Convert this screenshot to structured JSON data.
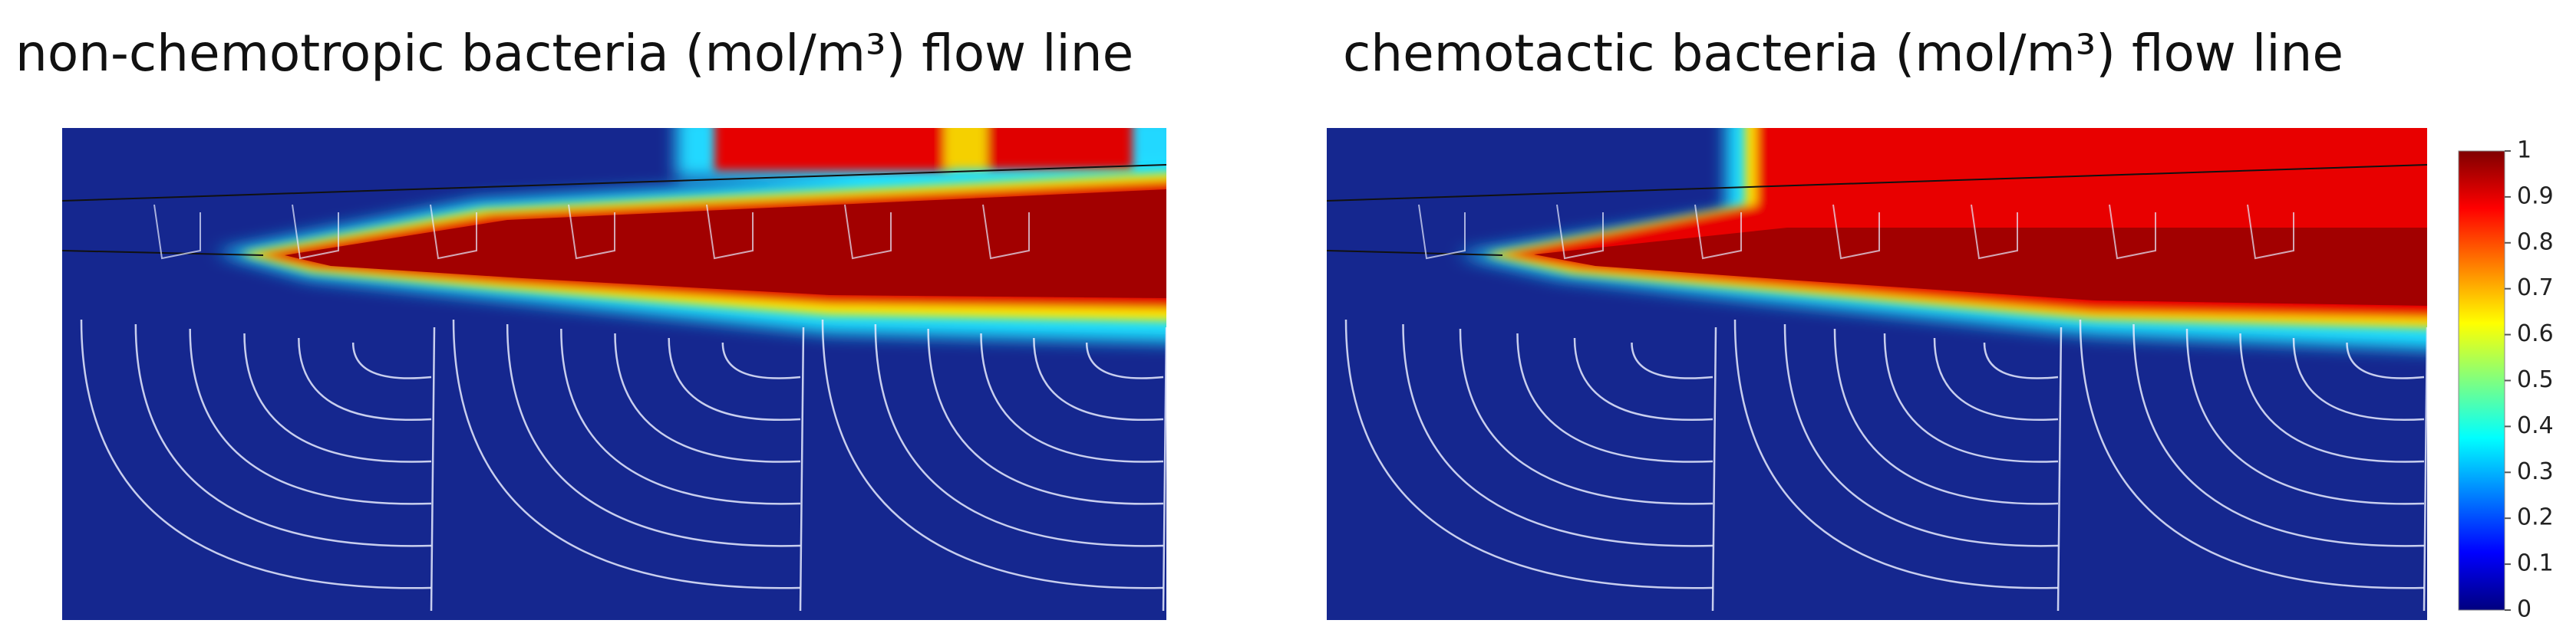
{
  "chart_data": [
    {
      "type": "heatmap",
      "title": "non-chemotropic bacteria (mol/m³) flow line"
    },
    {
      "type": "heatmap",
      "title": "chemotactic bacteria (mol/m³) flow line",
      "colormap": "jet",
      "clim": [
        0,
        1
      ],
      "cticks": [
        0,
        0.1,
        0.2,
        0.3,
        0.4,
        0.5,
        0.6,
        0.7,
        0.8,
        0.9,
        1
      ]
    }
  ]
}
